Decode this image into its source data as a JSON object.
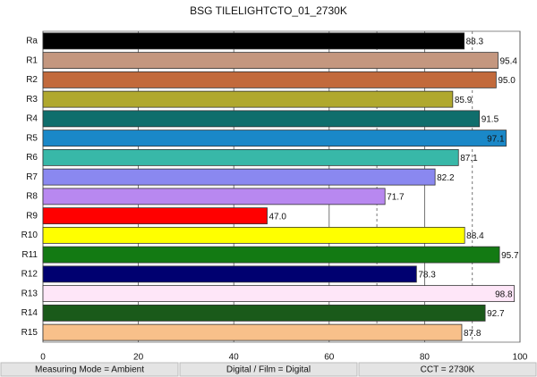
{
  "chart_data": {
    "type": "bar",
    "orientation": "horizontal",
    "title": "BSG TILELIGHTCTO_01_2730K",
    "categories": [
      "Ra",
      "R1",
      "R2",
      "R3",
      "R4",
      "R5",
      "R6",
      "R7",
      "R8",
      "R9",
      "R10",
      "R11",
      "R12",
      "R13",
      "R14",
      "R15"
    ],
    "values": [
      88.3,
      95.4,
      95.0,
      85.9,
      91.5,
      97.1,
      87.1,
      82.2,
      71.7,
      47.0,
      88.4,
      95.7,
      78.3,
      98.8,
      92.7,
      87.8
    ],
    "value_labels": [
      "88.3",
      "95.4",
      "95.0",
      "85.9",
      "91.5",
      "97.1",
      "87.1",
      "82.2",
      "71.7",
      "47.0",
      "88.4",
      "95.7",
      "78.3",
      "98.8",
      "92.7",
      "87.8"
    ],
    "colors": [
      "#000000",
      "#c4977f",
      "#c26a3c",
      "#b0a82e",
      "#0f6e6c",
      "#1a88c8",
      "#38b8a8",
      "#8a88f0",
      "#b888f0",
      "#ff0000",
      "#ffff00",
      "#137a13",
      "#000070",
      "#fee6f8",
      "#1a5a1a",
      "#f8c08a"
    ],
    "xlim": [
      0,
      100
    ],
    "xticks": [
      0,
      20,
      40,
      60,
      80,
      100
    ],
    "grid": true,
    "dashed_lines": [
      70,
      90
    ],
    "footer": [
      "Measuring Mode = Ambient",
      "Digital / Film = Digital",
      "CCT = 2730K"
    ]
  }
}
